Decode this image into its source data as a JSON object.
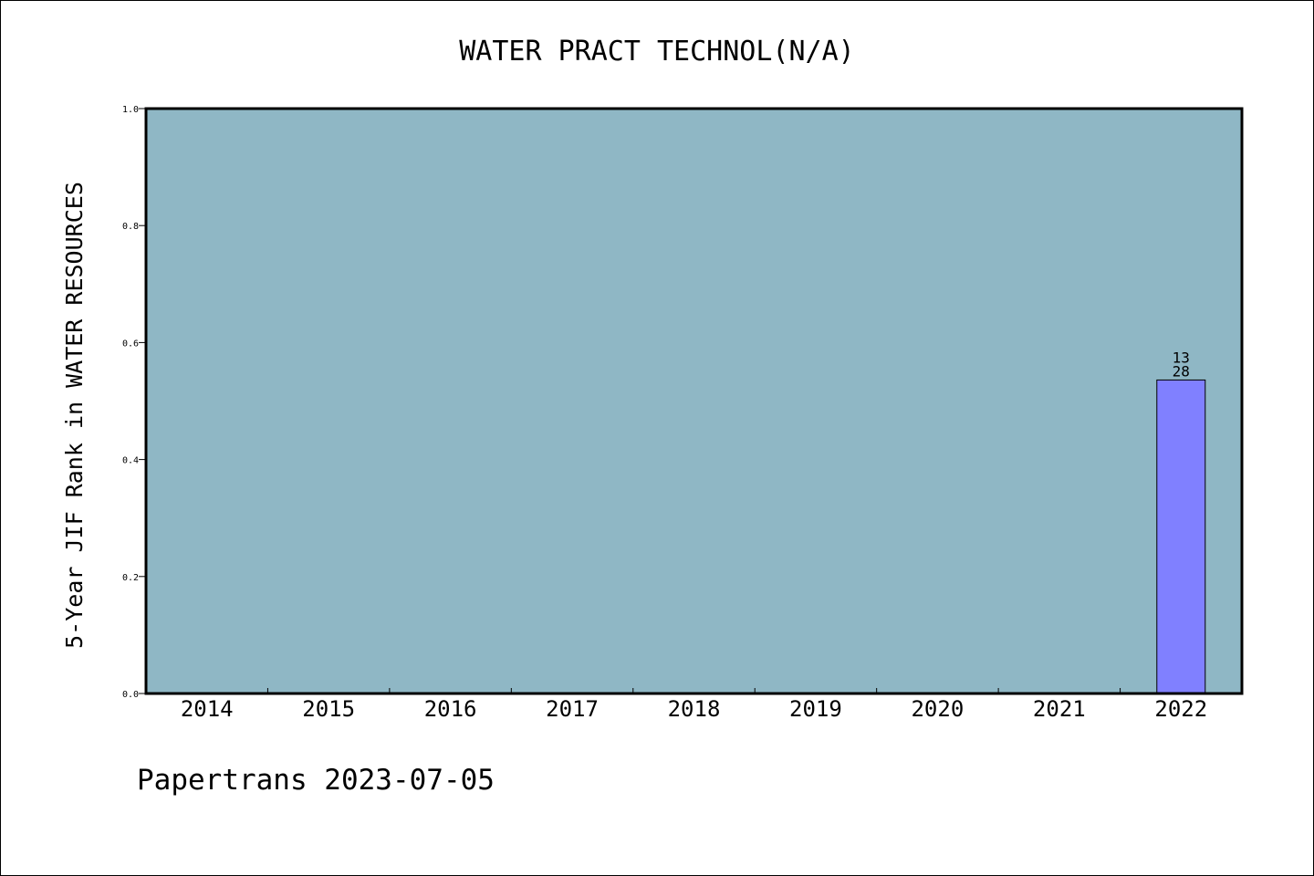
{
  "chart_data": {
    "type": "bar",
    "title": "WATER PRACT TECHNOL(N/A)",
    "xlabel": "",
    "ylabel": "5-Year JIF Rank in WATER RESOURCES",
    "categories": [
      "2014",
      "2015",
      "2016",
      "2017",
      "2018",
      "2019",
      "2020",
      "2021",
      "2022"
    ],
    "values": [
      null,
      null,
      null,
      null,
      null,
      null,
      null,
      null,
      0.536
    ],
    "bar_labels": [
      null,
      null,
      null,
      null,
      null,
      null,
      null,
      null,
      {
        "rank": "13",
        "total": "28"
      }
    ],
    "ylim": [
      0,
      1.0
    ],
    "yticks": [
      0.0,
      0.2,
      0.4,
      0.6,
      0.8,
      1.0
    ],
    "ytick_labels": [
      "0.0",
      "0.2",
      "0.4",
      "0.6",
      "0.8",
      "1.0"
    ],
    "grid": false,
    "legend": "none"
  },
  "colors": {
    "plot_background": "#8fb7c5",
    "bar_fill": "#8080ff",
    "bar_stroke": "#000000",
    "axis": "#000000",
    "page_background": "#ffffff"
  },
  "footer": {
    "text": "Papertrans 2023-07-05"
  }
}
